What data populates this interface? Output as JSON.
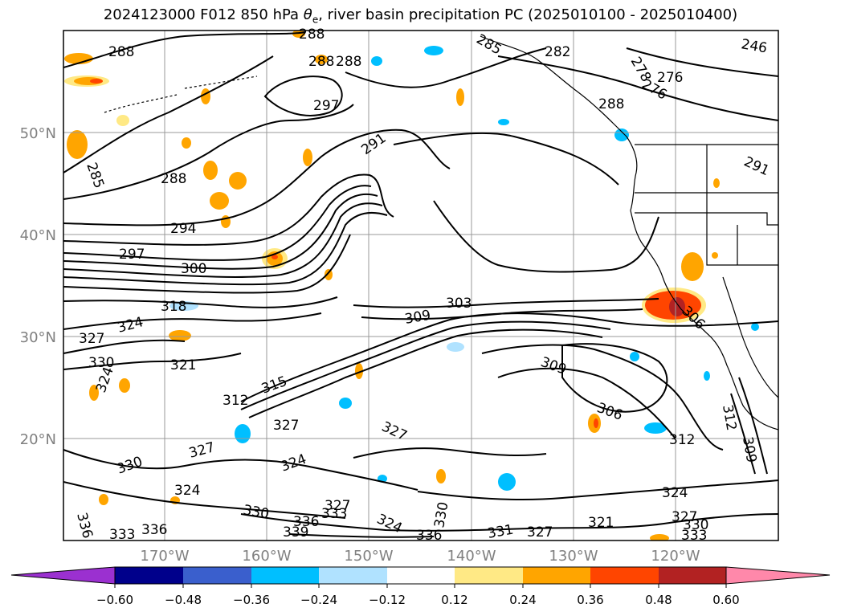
{
  "title": {
    "prefix": "2024123000 F012 850 hPa ",
    "theta_symbol": "θ",
    "theta_sub": "e",
    "suffix": ", river basin precipitation PC (2025010100 - 2025010400)"
  },
  "map": {
    "lat_labels": [
      "50°N",
      "40°N",
      "30°N",
      "20°N"
    ],
    "lon_labels": [
      "170°W",
      "160°W",
      "150°W",
      "140°W",
      "130°W",
      "120°W"
    ],
    "contour_labels": [
      "288",
      "288",
      "288",
      "285",
      "288",
      "297",
      "291",
      "294",
      "297",
      "300",
      "318",
      "324",
      "327",
      "330",
      "321",
      "324",
      "315",
      "312",
      "327",
      "327",
      "330",
      "327",
      "324",
      "324",
      "330",
      "336",
      "333",
      "336",
      "333",
      "339",
      "336",
      "327",
      "324",
      "330",
      "303",
      "309",
      "309",
      "306",
      "312",
      "312",
      "309",
      "324",
      "321",
      "327",
      "330",
      "333",
      "282",
      "278",
      "276",
      "276",
      "246",
      "291",
      "288",
      "306",
      "336",
      "331",
      "327",
      "288",
      "285"
    ],
    "grid_color": "#777777",
    "coast_color": "#000000",
    "contour_color": "#000000"
  },
  "colorbar": {
    "tick_labels": [
      "−0.60",
      "−0.48",
      "−0.36",
      "−0.24",
      "−0.12",
      "0.12",
      "0.24",
      "0.36",
      "0.48",
      "0.60"
    ],
    "colors": [
      "#9b30d0",
      "#00008b",
      "#3a5fcd",
      "#00bfff",
      "#b0e2ff",
      "#ffffff",
      "#ffe985",
      "#ffa500",
      "#ff4500",
      "#b22222",
      "#ff88aa"
    ]
  }
}
